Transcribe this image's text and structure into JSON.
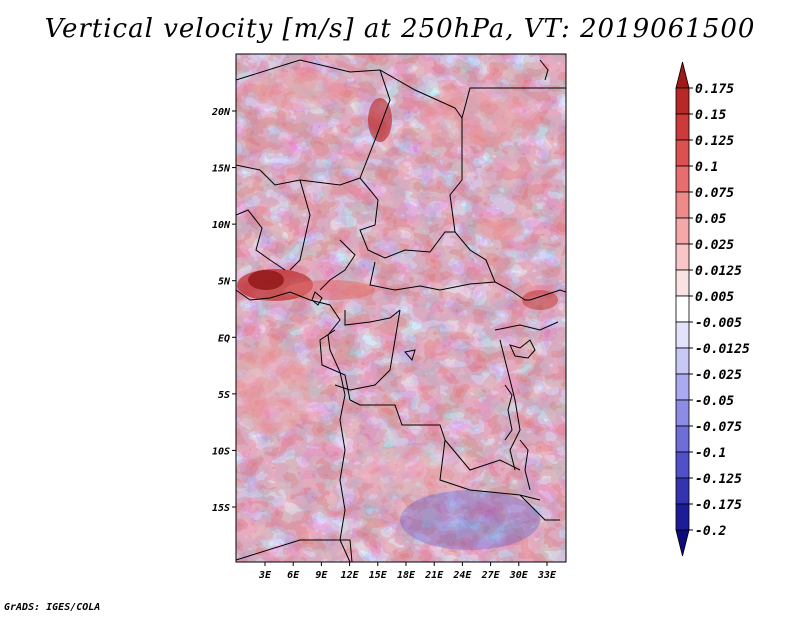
{
  "title": "Vertical velocity [m/s] at 250hPa, VT: 2019061500",
  "credit": "GrADS: IGES/COLA",
  "map": {
    "lat_labels": [
      "20N",
      "15N",
      "10N",
      "5N",
      "EQ",
      "5S",
      "10S",
      "15S"
    ],
    "lat_values": [
      20,
      15,
      10,
      5,
      0,
      -5,
      -10,
      -15
    ],
    "lon_labels": [
      "3E",
      "6E",
      "9E",
      "12E",
      "15E",
      "18E",
      "21E",
      "24E",
      "27E",
      "30E",
      "33E"
    ],
    "lon_values": [
      3,
      6,
      9,
      12,
      15,
      18,
      21,
      24,
      27,
      30,
      33
    ],
    "lon_range": [
      0,
      35
    ],
    "lat_range": [
      -20,
      25
    ]
  },
  "colorbar": {
    "labels": [
      "0.175",
      "0.15",
      "0.125",
      "0.1",
      "0.075",
      "0.05",
      "0.025",
      "0.0125",
      "0.005",
      "-0.005",
      "-0.0125",
      "-0.025",
      "-0.05",
      "-0.075",
      "-0.1",
      "-0.125",
      "-0.175",
      "-0.2"
    ],
    "colors": [
      "#a01818",
      "#b82828",
      "#cc3a3a",
      "#dc5050",
      "#e66e6e",
      "#ee8a8a",
      "#f4a8a8",
      "#f8c6c6",
      "#fbe2e2",
      "#ffffff",
      "#e2e2fb",
      "#c8c8f6",
      "#aaaaf0",
      "#8c8ce6",
      "#6e6ed8",
      "#5050c8",
      "#3434b0",
      "#1c1c98",
      "#0c0c7c"
    ]
  }
}
